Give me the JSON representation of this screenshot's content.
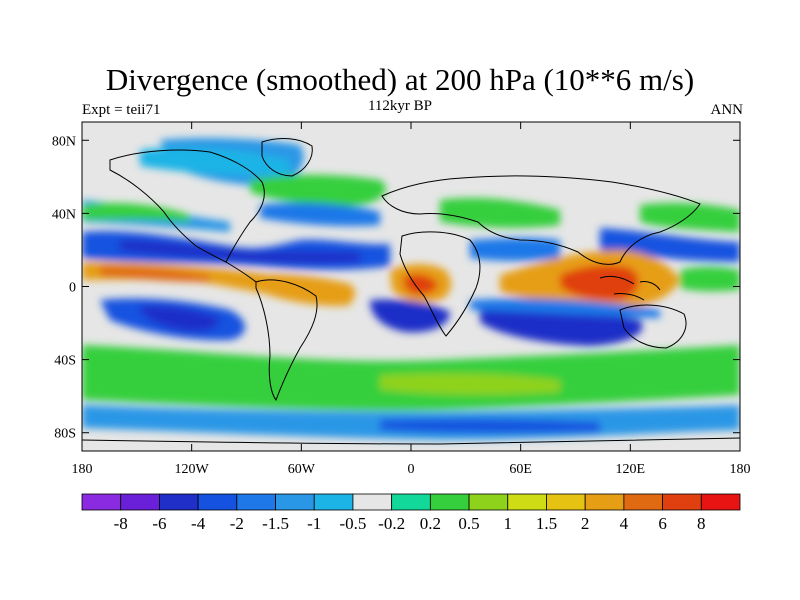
{
  "title": "Divergence (smoothed) at 200 hPa (10**6 m/s)",
  "left_label": "Expt = teii71",
  "center_label": "112kyr BP",
  "right_label": "ANN",
  "lat_ticks": [
    {
      "label": "80N",
      "lat": 80
    },
    {
      "label": "40N",
      "lat": 40
    },
    {
      "label": "0",
      "lat": 0
    },
    {
      "label": "40S",
      "lat": -40
    },
    {
      "label": "80S",
      "lat": -80
    }
  ],
  "lon_ticks": [
    {
      "label": "180",
      "lon": -180
    },
    {
      "label": "120W",
      "lon": -120
    },
    {
      "label": "60W",
      "lon": -60
    },
    {
      "label": "0",
      "lon": 0
    },
    {
      "label": "60E",
      "lon": 60
    },
    {
      "label": "120E",
      "lon": 120
    },
    {
      "label": "180",
      "lon": 180
    }
  ],
  "colorbar": {
    "colors": [
      "#8a2be2",
      "#6a1fd8",
      "#1f2fc8",
      "#1552e0",
      "#1e78e8",
      "#2a97e6",
      "#1cb4e6",
      "#e6e6e6",
      "#12d89a",
      "#35cf3d",
      "#8fd21c",
      "#cddc14",
      "#e6c312",
      "#e69e14",
      "#e06a12",
      "#e04010",
      "#e81414"
    ],
    "labels": [
      "-8",
      "-6",
      "-4",
      "-2",
      "-1.5",
      "-1",
      "-0.5",
      "-0.2",
      "0.2",
      "0.5",
      "1",
      "1.5",
      "2",
      "4",
      "6",
      "8"
    ]
  },
  "map_colors": {
    "neutral": "#e6e6e6",
    "coast": "#000000"
  }
}
